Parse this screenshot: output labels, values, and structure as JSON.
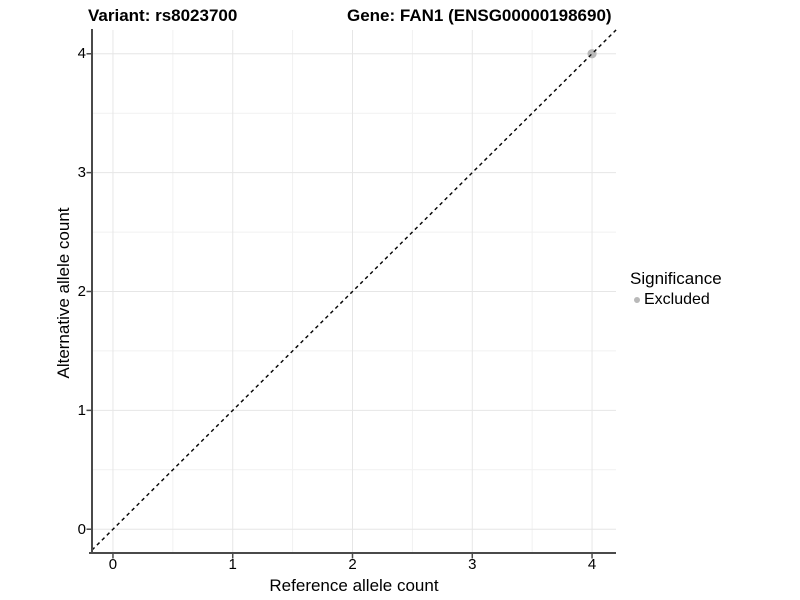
{
  "chart_data": {
    "type": "scatter",
    "title_left": "Variant: rs8023700",
    "title_right": "Gene: FAN1 (ENSG00000198690)",
    "xlabel": "Reference allele count",
    "ylabel": "Alternative allele count",
    "x_ticks": [
      0,
      1,
      2,
      3,
      4
    ],
    "y_ticks": [
      0,
      1,
      2,
      3,
      4
    ],
    "x_minor_ticks": [
      0.5,
      1.5,
      2.5,
      3.5
    ],
    "y_minor_ticks": [
      0.5,
      1.5,
      2.5,
      3.5
    ],
    "xlim": [
      -0.175,
      4.2
    ],
    "ylim": [
      -0.2,
      4.2
    ],
    "grid": "major+minor",
    "identity_line": {
      "style": "dashed",
      "slope": 1,
      "intercept": 0
    },
    "series": [
      {
        "name": "Excluded",
        "color": "#b9b9b9",
        "points": [
          {
            "x": 4,
            "y": 4
          }
        ]
      }
    ],
    "legend": {
      "title": "Significance",
      "position": "right",
      "items": [
        {
          "label": "Excluded",
          "color": "#b9b9b9"
        }
      ]
    },
    "colors": {
      "background": "#ffffff",
      "grid_major": "#e6e6e6",
      "grid_minor": "#f1f1f1",
      "axis_line": "#4a4a4a",
      "tick_mark": "#4a4a4a",
      "dashed_line": "#0a0a0a",
      "text": "#000000"
    }
  }
}
